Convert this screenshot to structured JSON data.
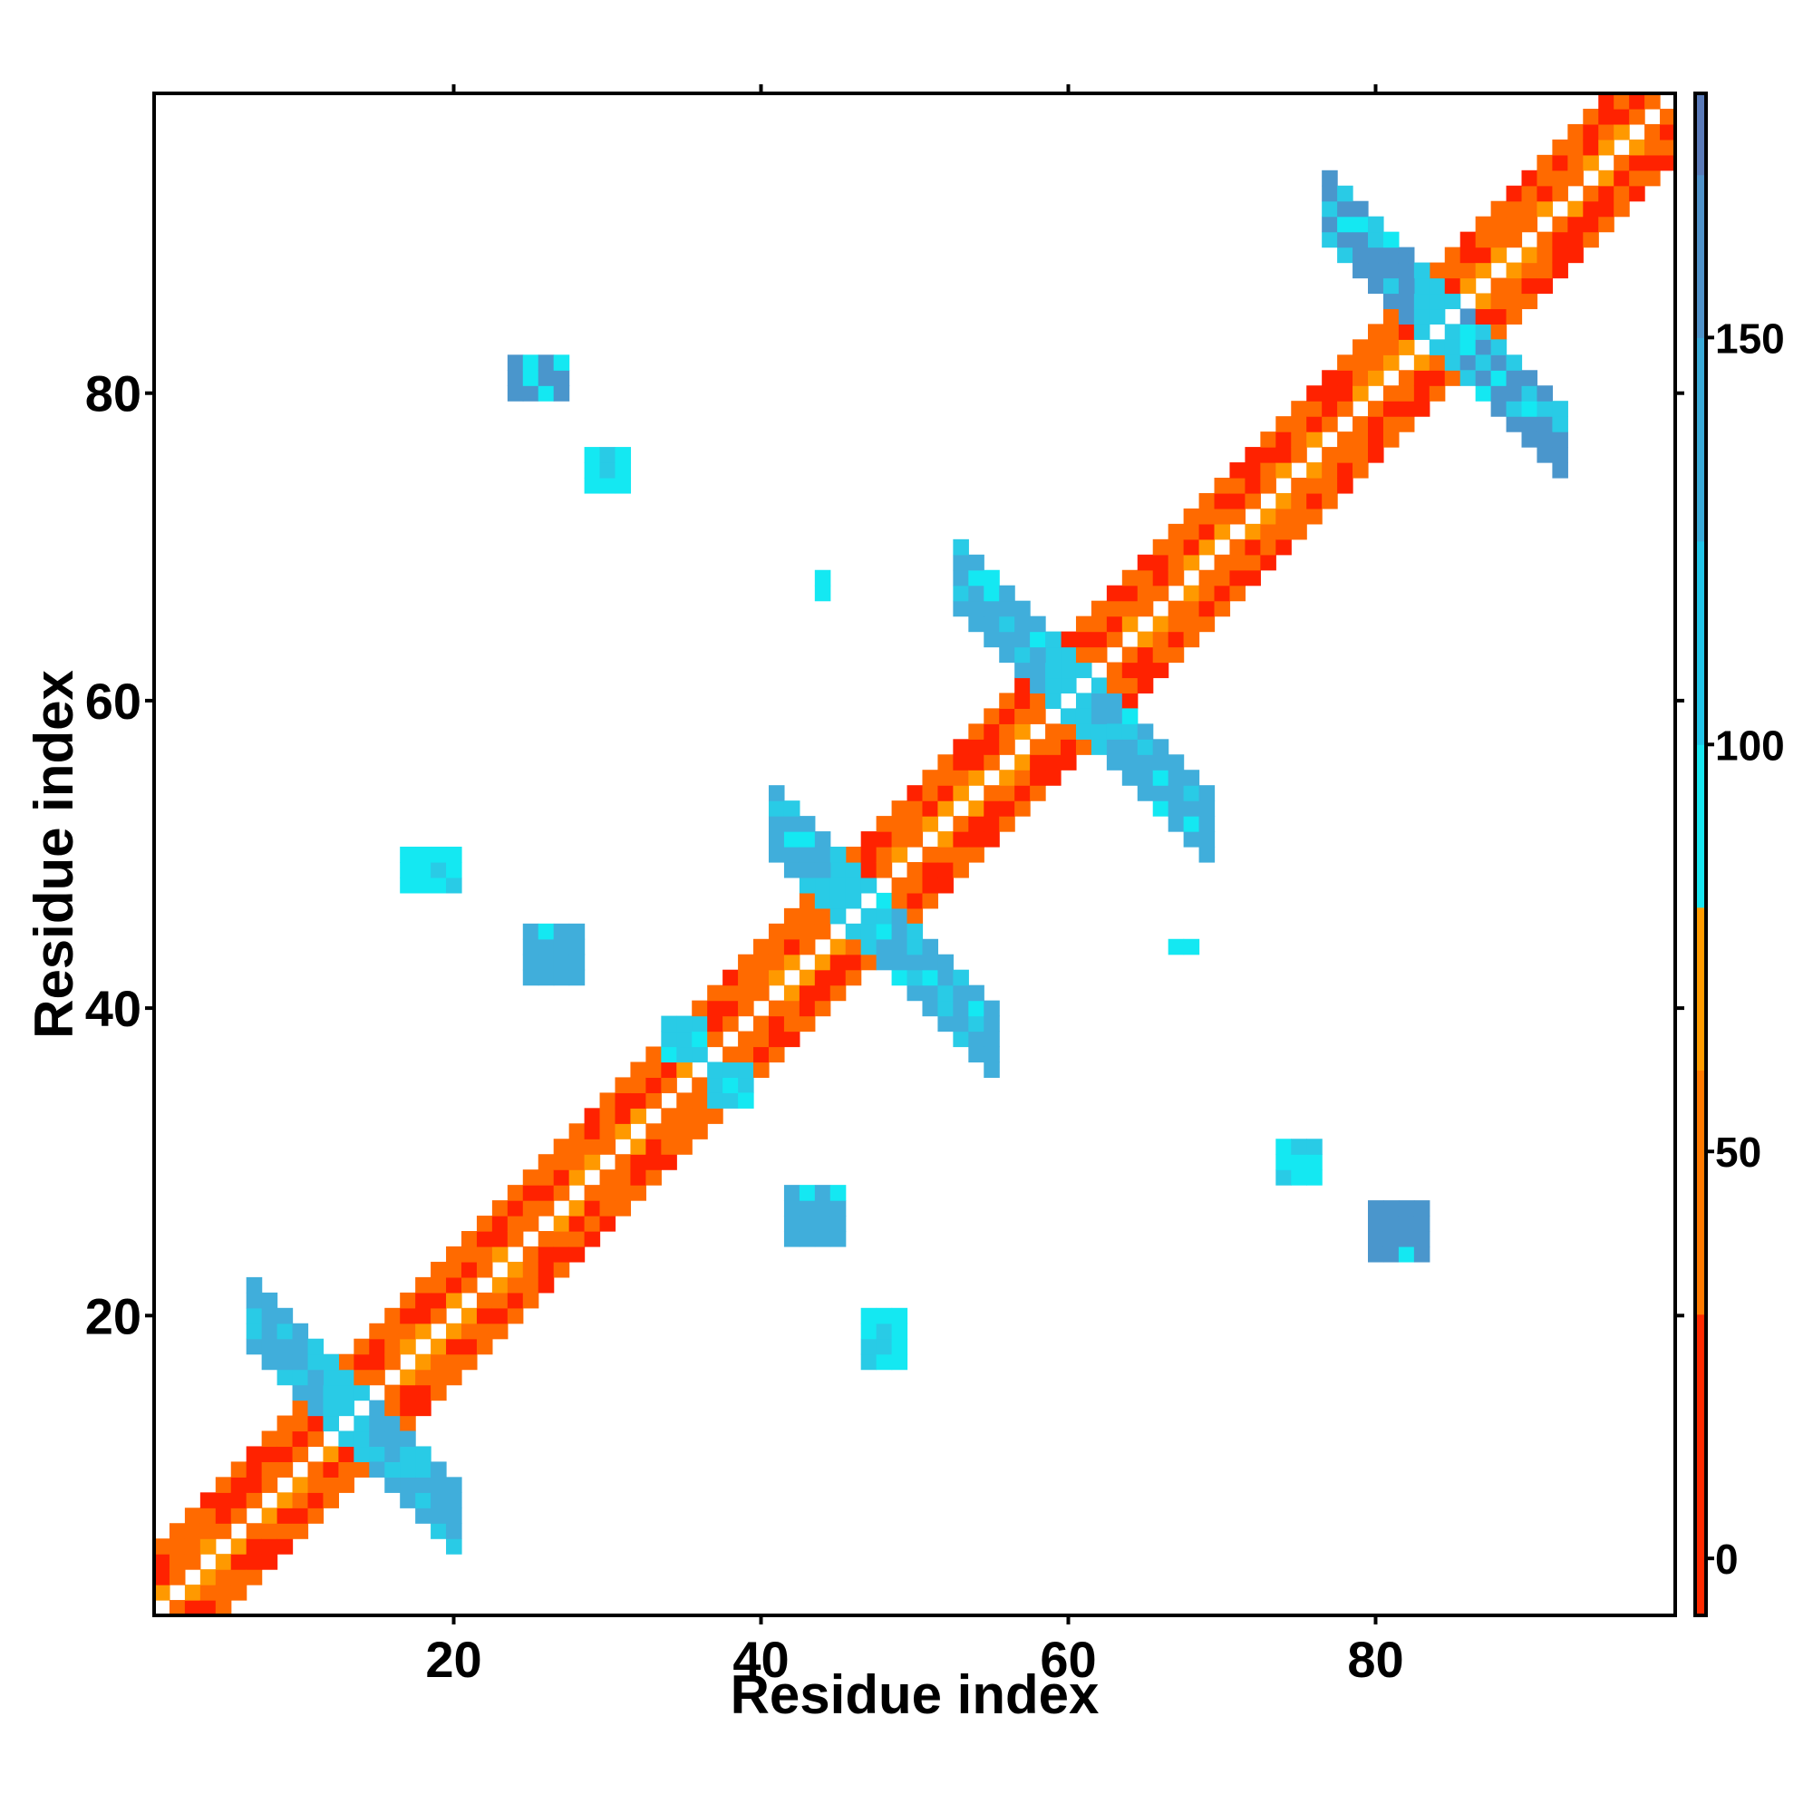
{
  "chart_data": {
    "type": "heatmap",
    "xlabel": "Residue index",
    "ylabel": "Residue index",
    "xlim": [
      0.5,
      99.5
    ],
    "ylim": [
      0.5,
      99.5
    ],
    "xticks": [
      20,
      40,
      60,
      80
    ],
    "yticks": [
      20,
      40,
      60,
      80
    ],
    "grid": false,
    "colorbar": {
      "ticks": [
        0,
        50,
        100,
        150
      ],
      "range": [
        -7,
        180
      ],
      "stops": [
        {
          "from": -7,
          "to": 30,
          "color": "#ff2a00"
        },
        {
          "from": 30,
          "to": 60,
          "color": "#ff7a00"
        },
        {
          "from": 60,
          "to": 80,
          "color": "#ff9c00"
        },
        {
          "from": 80,
          "to": 100,
          "color": "#19e6f0"
        },
        {
          "from": 100,
          "to": 125,
          "color": "#22c4e8"
        },
        {
          "from": 125,
          "to": 150,
          "color": "#3aaad8"
        },
        {
          "from": 150,
          "to": 170,
          "color": "#4f92c9"
        },
        {
          "from": 170,
          "to": 180,
          "color": "#5a7ab8"
        },
        {
          "from": 180,
          "to": 187,
          "color": "#ffffff"
        }
      ]
    },
    "palette": {
      "red": "#ff2200",
      "orange": "#ff6a00",
      "amber": "#ff9900",
      "cyan": "#14e8f2",
      "sky": "#29cbe6",
      "blue": "#40aedb",
      "steel": "#4a96cc"
    },
    "regions": [
      {
        "name": "diagonal band",
        "type": "band",
        "x_from": 1,
        "x_to": 99,
        "offsets": [
          -4,
          -3,
          -2,
          -1,
          1,
          2,
          3,
          4
        ]
      },
      {
        "name": "strand pair 1",
        "type": "antidiag",
        "pivot": [
          13,
          14
        ],
        "x_from": 7,
        "x_to": 20,
        "width": 2,
        "color": "blue"
      },
      {
        "name": "strand pair 2",
        "type": "antidiag",
        "pivot": [
          46,
          47
        ],
        "x_from": 41,
        "x_to": 55,
        "width": 2,
        "color": "blue"
      },
      {
        "name": "strand pair 3",
        "type": "antidiag",
        "pivot": [
          60,
          61
        ],
        "x_from": 53,
        "x_to": 69,
        "width": 2,
        "color": "blue"
      },
      {
        "name": "strand pair 4",
        "type": "antidiag",
        "pivot": [
          84,
          85
        ],
        "x_from": 77,
        "x_to": 92,
        "width": 2,
        "color": "steel"
      },
      {
        "name": "contact 36-37",
        "type": "block",
        "x_from": 34,
        "x_to": 36,
        "y_from": 37,
        "y_to": 39,
        "color": "sky"
      },
      {
        "name": "contact 37-36",
        "type": "block",
        "x_from": 37,
        "x_to": 39,
        "y_from": 34,
        "y_to": 36,
        "color": "sky"
      },
      {
        "name": "patch 24-81",
        "type": "block",
        "x_from": 24,
        "x_to": 27,
        "y_from": 80,
        "y_to": 82,
        "color": "steel"
      },
      {
        "name": "patch 30-75",
        "type": "block",
        "x_from": 29,
        "x_to": 31,
        "y_from": 74,
        "y_to": 76,
        "color": "cyan"
      },
      {
        "name": "patch 18-49",
        "type": "block",
        "x_from": 17,
        "x_to": 20,
        "y_from": 48,
        "y_to": 50,
        "color": "cyan"
      },
      {
        "name": "patch 27-44",
        "type": "block",
        "x_from": 25,
        "x_to": 28,
        "y_from": 42,
        "y_to": 45,
        "color": "blue"
      },
      {
        "name": "patch 44-68",
        "type": "block",
        "x_from": 44,
        "x_to": 44,
        "y_from": 67,
        "y_to": 68,
        "color": "cyan"
      },
      {
        "name": "patch 43-27",
        "type": "block",
        "x_from": 42,
        "x_to": 45,
        "y_from": 25,
        "y_to": 28,
        "color": "blue"
      },
      {
        "name": "patch 48-19",
        "type": "block",
        "x_from": 47,
        "x_to": 49,
        "y_from": 17,
        "y_to": 20,
        "color": "cyan"
      },
      {
        "name": "patch 67-44",
        "type": "block",
        "x_from": 67,
        "x_to": 68,
        "y_from": 44,
        "y_to": 44,
        "color": "sky"
      },
      {
        "name": "patch 75-30",
        "type": "block",
        "x_from": 74,
        "x_to": 76,
        "y_from": 29,
        "y_to": 31,
        "color": "cyan"
      },
      {
        "name": "patch 81-25",
        "type": "block",
        "x_from": 80,
        "x_to": 83,
        "y_from": 24,
        "y_to": 27,
        "color": "steel"
      }
    ]
  }
}
